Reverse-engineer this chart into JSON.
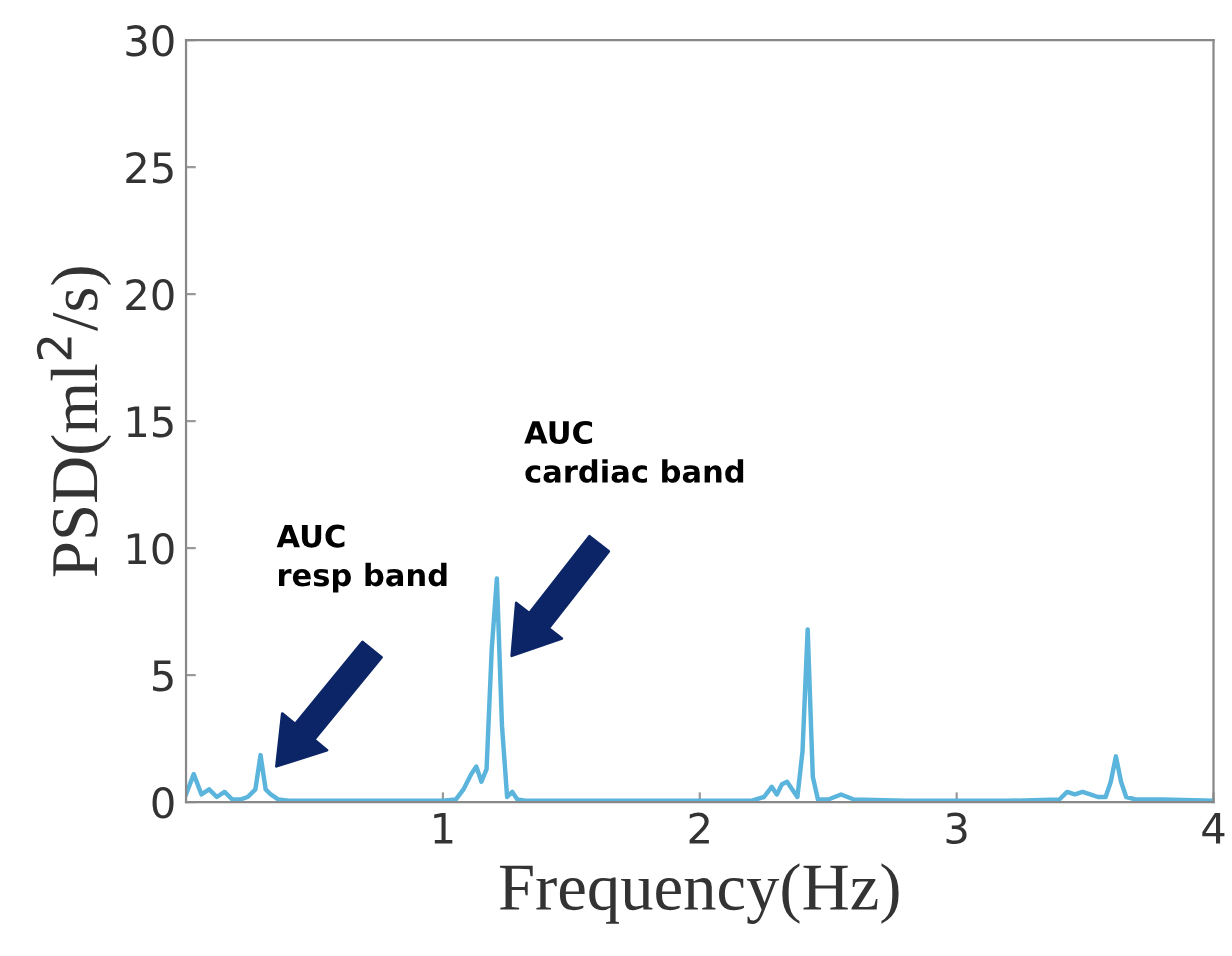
{
  "chart_data": {
    "type": "line",
    "xlabel": "Frequency(Hz)",
    "ylabel": "PSD(ml$^{2}$/s)",
    "xlim": [
      0,
      4
    ],
    "ylim": [
      0,
      30
    ],
    "xticks": [
      1,
      2,
      3,
      4
    ],
    "yticks": [
      0,
      5,
      10,
      15,
      20,
      25,
      30
    ],
    "grid": false,
    "legend": false,
    "marker": "none",
    "line_style": "solid",
    "series": [
      {
        "color": "#5ab4dc",
        "x": [
          0.0,
          0.03,
          0.06,
          0.09,
          0.12,
          0.15,
          0.18,
          0.21,
          0.24,
          0.27,
          0.29,
          0.31,
          0.33,
          0.36,
          0.4,
          0.5,
          0.6,
          0.7,
          0.8,
          0.9,
          1.0,
          1.05,
          1.08,
          1.11,
          1.13,
          1.15,
          1.17,
          1.19,
          1.21,
          1.23,
          1.25,
          1.27,
          1.29,
          1.32,
          1.4,
          1.6,
          1.8,
          2.0,
          2.2,
          2.25,
          2.28,
          2.3,
          2.32,
          2.34,
          2.36,
          2.38,
          2.4,
          2.42,
          2.44,
          2.46,
          2.5,
          2.55,
          2.6,
          2.8,
          3.0,
          3.2,
          3.4,
          3.43,
          3.46,
          3.49,
          3.52,
          3.55,
          3.58,
          3.6,
          3.62,
          3.64,
          3.66,
          3.7,
          3.8,
          4.0
        ],
        "values": [
          0.3,
          1.1,
          0.3,
          0.5,
          0.2,
          0.4,
          0.1,
          0.1,
          0.2,
          0.5,
          1.85,
          0.5,
          0.3,
          0.1,
          0.05,
          0.05,
          0.05,
          0.05,
          0.05,
          0.05,
          0.05,
          0.1,
          0.5,
          1.1,
          1.4,
          0.8,
          1.3,
          6.0,
          8.8,
          3.0,
          0.2,
          0.4,
          0.1,
          0.05,
          0.05,
          0.05,
          0.05,
          0.05,
          0.05,
          0.2,
          0.6,
          0.3,
          0.7,
          0.8,
          0.5,
          0.2,
          2.0,
          6.8,
          1.0,
          0.1,
          0.1,
          0.3,
          0.1,
          0.05,
          0.05,
          0.05,
          0.1,
          0.4,
          0.3,
          0.4,
          0.3,
          0.2,
          0.2,
          0.8,
          1.8,
          0.8,
          0.2,
          0.1,
          0.1,
          0.05
        ]
      }
    ],
    "annotations": [
      "AUC\nresp band",
      "AUC\ncardiac band"
    ]
  }
}
